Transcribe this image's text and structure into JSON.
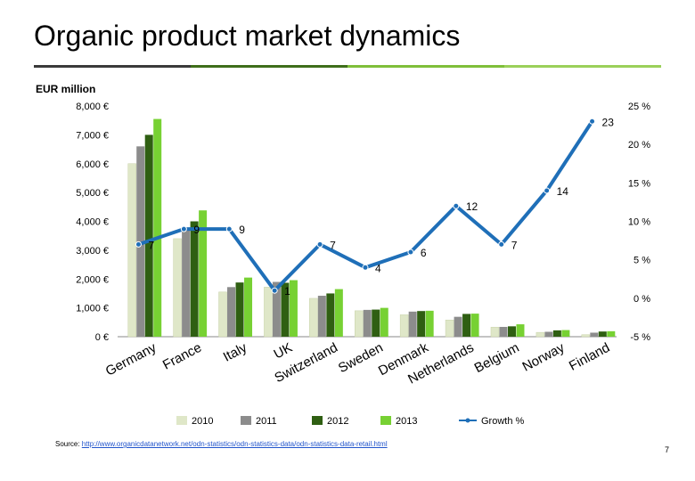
{
  "page": {
    "title": "Organic product market dynamics",
    "unit_label": "EUR million",
    "source_prefix": "Source: ",
    "source_link": "http://www.organicdatanetwork.net/odn-statistics/odn-statistics-data/odn-statistics-data-retail.html",
    "page_number": "7"
  },
  "colors": {
    "rule": [
      "#3a3a3a",
      "#3f6e1a",
      "#7fbf3a",
      "#9bd05a"
    ],
    "s2010": "#dfe7c8",
    "s2011": "#8c8c8c",
    "s2012": "#2f5f12",
    "s2013": "#77d133",
    "growth": "#1f6fb8"
  },
  "chart_data": {
    "type": "bar",
    "categories": [
      "Germany",
      "France",
      "Italy",
      "UK",
      "Switzerland",
      "Sweden",
      "Denmark",
      "Netherlands",
      "Belgium",
      "Norway",
      "Finland"
    ],
    "series": [
      {
        "name": "2010",
        "values": [
          6000,
          3400,
          1550,
          1720,
          1330,
          900,
          760,
          580,
          330,
          150,
          70
        ]
      },
      {
        "name": "2011",
        "values": [
          6600,
          3750,
          1720,
          1900,
          1420,
          930,
          870,
          690,
          340,
          170,
          140
        ]
      },
      {
        "name": "2012",
        "values": [
          7000,
          4000,
          1880,
          1870,
          1500,
          940,
          890,
          790,
          360,
          220,
          180
        ]
      },
      {
        "name": "2013",
        "values": [
          7550,
          4380,
          2050,
          1960,
          1650,
          1000,
          900,
          800,
          430,
          230,
          190
        ]
      }
    ],
    "line_series": {
      "name": "Growth %",
      "values": [
        7,
        9,
        9,
        1,
        7,
        4,
        6,
        12,
        7,
        14,
        23
      ],
      "labels": [
        "7",
        "9",
        "9",
        "1",
        "7",
        "4",
        "6",
        "12",
        "7",
        "14",
        "23"
      ]
    },
    "y_left": {
      "ylim": [
        0,
        8000
      ],
      "ticks": [
        0,
        1000,
        2000,
        3000,
        4000,
        5000,
        6000,
        7000,
        8000
      ],
      "tick_labels": [
        "0 €",
        "1,000 €",
        "2,000 €",
        "3,000 €",
        "4,000 €",
        "5,000 €",
        "6,000 €",
        "7,000 €",
        "8,000 €"
      ]
    },
    "y_right": {
      "ylim": [
        -5,
        25
      ],
      "ticks": [
        -5,
        0,
        5,
        10,
        15,
        20,
        25
      ],
      "tick_labels": [
        "-5 %",
        "0 %",
        "5 %",
        "10 %",
        "15 %",
        "20 %",
        "25 %"
      ]
    },
    "legend": {
      "position": "bottom",
      "items": [
        "2010",
        "2011",
        "2012",
        "2013",
        "Growth %"
      ]
    },
    "grid": false
  }
}
